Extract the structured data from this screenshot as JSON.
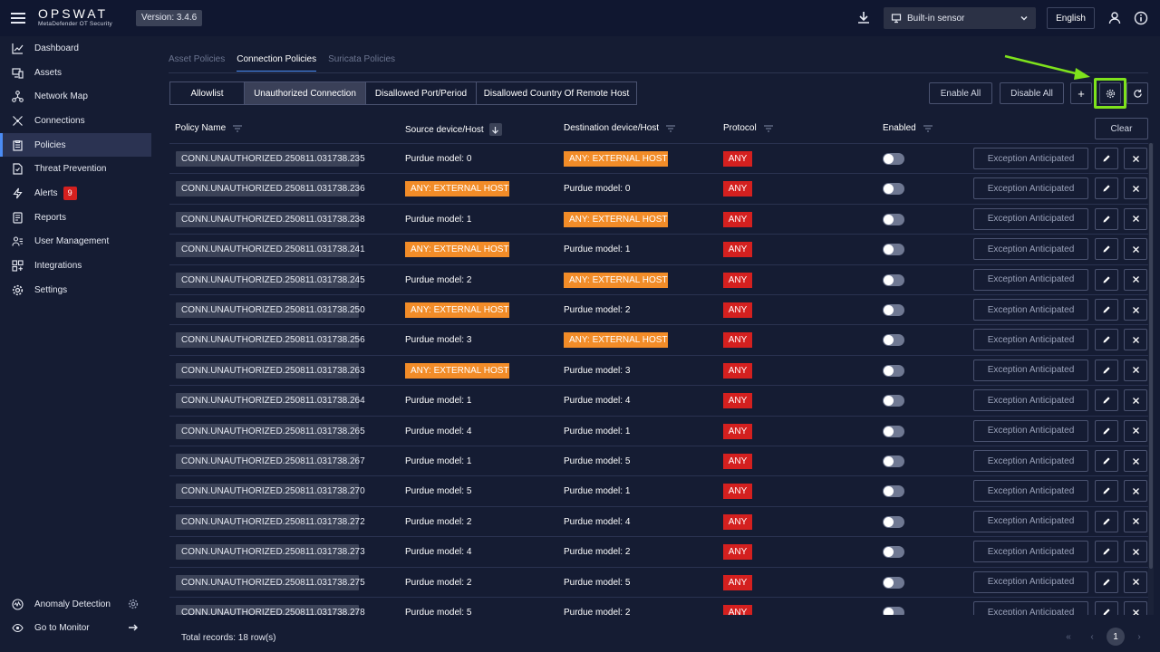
{
  "header": {
    "brand": "OPSWAT",
    "brand_sub": "MetaDefender OT Security",
    "version": "Version: 3.4.6",
    "sensor": "Built-in sensor",
    "language": "English"
  },
  "sidebar": {
    "items": [
      {
        "label": "Dashboard",
        "icon": "chart-line-icon"
      },
      {
        "label": "Assets",
        "icon": "devices-icon"
      },
      {
        "label": "Network Map",
        "icon": "network-icon"
      },
      {
        "label": "Connections",
        "icon": "connections-icon"
      },
      {
        "label": "Policies",
        "icon": "clipboard-icon",
        "active": true
      },
      {
        "label": "Threat Prevention",
        "icon": "shield-file-icon"
      },
      {
        "label": "Alerts",
        "icon": "lightning-icon",
        "badge": "9"
      },
      {
        "label": "Reports",
        "icon": "report-icon"
      },
      {
        "label": "User Management",
        "icon": "users-icon"
      },
      {
        "label": "Integrations",
        "icon": "integrations-icon"
      },
      {
        "label": "Settings",
        "icon": "gear-icon"
      }
    ],
    "bottom": [
      {
        "label": "Anomaly Detection",
        "icon": "anomaly-icon",
        "trail_icon": "gear-icon"
      },
      {
        "label": "Go to Monitor",
        "icon": "eye-icon",
        "trail_icon": "arrow-right-icon"
      }
    ]
  },
  "subtabs": [
    {
      "label": "Asset Policies",
      "active": false
    },
    {
      "label": "Connection Policies",
      "active": true
    },
    {
      "label": "Suricata Policies",
      "active": false
    }
  ],
  "typetabs": [
    {
      "label": "Allowlist",
      "active": false
    },
    {
      "label": "Unauthorized Connection",
      "active": true
    },
    {
      "label": "Disallowed Port/Period",
      "active": false
    },
    {
      "label": "Disallowed Country Of Remote Host",
      "active": false
    }
  ],
  "toolbar": {
    "enable_all": "Enable All",
    "disable_all": "Disable All",
    "add": "+",
    "clear": "Clear"
  },
  "table": {
    "columns": {
      "policy_name": "Policy Name",
      "source": "Source device/Host",
      "destination": "Destination device/Host",
      "protocol": "Protocol",
      "enabled": "Enabled"
    },
    "exception_label": "Exception Anticipated",
    "rows": [
      {
        "name": "CONN.UNAUTHORIZED.250811.031738.235",
        "source": "Purdue model: 0",
        "destination": "ANY: EXTERNAL HOST",
        "protocol": "ANY"
      },
      {
        "name": "CONN.UNAUTHORIZED.250811.031738.236",
        "source": "ANY: EXTERNAL HOST",
        "destination": "Purdue model: 0",
        "protocol": "ANY"
      },
      {
        "name": "CONN.UNAUTHORIZED.250811.031738.238",
        "source": "Purdue model: 1",
        "destination": "ANY: EXTERNAL HOST",
        "protocol": "ANY"
      },
      {
        "name": "CONN.UNAUTHORIZED.250811.031738.241",
        "source": "ANY: EXTERNAL HOST",
        "destination": "Purdue model: 1",
        "protocol": "ANY"
      },
      {
        "name": "CONN.UNAUTHORIZED.250811.031738.245",
        "source": "Purdue model: 2",
        "destination": "ANY: EXTERNAL HOST",
        "protocol": "ANY"
      },
      {
        "name": "CONN.UNAUTHORIZED.250811.031738.250",
        "source": "ANY: EXTERNAL HOST",
        "destination": "Purdue model: 2",
        "protocol": "ANY"
      },
      {
        "name": "CONN.UNAUTHORIZED.250811.031738.256",
        "source": "Purdue model: 3",
        "destination": "ANY: EXTERNAL HOST",
        "protocol": "ANY"
      },
      {
        "name": "CONN.UNAUTHORIZED.250811.031738.263",
        "source": "ANY: EXTERNAL HOST",
        "destination": "Purdue model: 3",
        "protocol": "ANY"
      },
      {
        "name": "CONN.UNAUTHORIZED.250811.031738.264",
        "source": "Purdue model: 1",
        "destination": "Purdue model: 4",
        "protocol": "ANY"
      },
      {
        "name": "CONN.UNAUTHORIZED.250811.031738.265",
        "source": "Purdue model: 4",
        "destination": "Purdue model: 1",
        "protocol": "ANY"
      },
      {
        "name": "CONN.UNAUTHORIZED.250811.031738.267",
        "source": "Purdue model: 1",
        "destination": "Purdue model: 5",
        "protocol": "ANY"
      },
      {
        "name": "CONN.UNAUTHORIZED.250811.031738.270",
        "source": "Purdue model: 5",
        "destination": "Purdue model: 1",
        "protocol": "ANY"
      },
      {
        "name": "CONN.UNAUTHORIZED.250811.031738.272",
        "source": "Purdue model: 2",
        "destination": "Purdue model: 4",
        "protocol": "ANY"
      },
      {
        "name": "CONN.UNAUTHORIZED.250811.031738.273",
        "source": "Purdue model: 4",
        "destination": "Purdue model: 2",
        "protocol": "ANY"
      },
      {
        "name": "CONN.UNAUTHORIZED.250811.031738.275",
        "source": "Purdue model: 2",
        "destination": "Purdue model: 5",
        "protocol": "ANY"
      },
      {
        "name": "CONN.UNAUTHORIZED.250811.031738.278",
        "source": "Purdue model: 5",
        "destination": "Purdue model: 2",
        "protocol": "ANY"
      }
    ]
  },
  "footer": {
    "total": "Total records: 18 row(s)",
    "current_page": "1"
  },
  "colors": {
    "accent": "#4b8cf5",
    "external_host": "#f28c28",
    "protocol_any": "#d4201f",
    "highlight": "#7ee21c"
  }
}
